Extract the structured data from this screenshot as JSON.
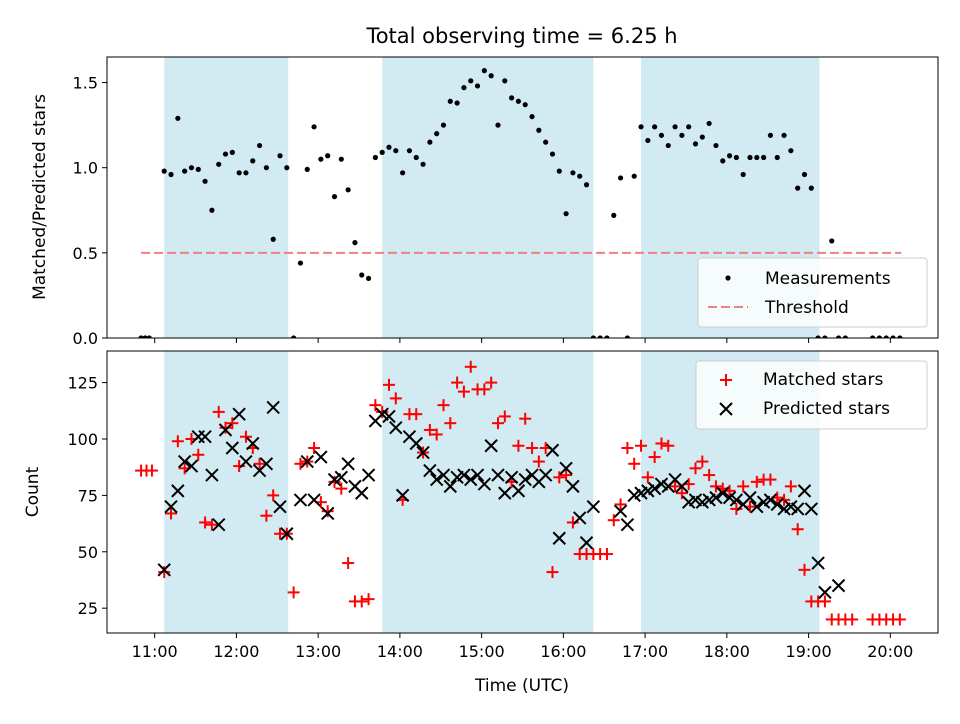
{
  "chart_data": [
    {
      "type": "scatter",
      "title": "Total observing time = 6.25 h",
      "ylabel": "Matched/Predicted stars",
      "xlim": [
        "10:25",
        "20:35"
      ],
      "ylim": [
        0,
        1.65
      ],
      "x_ticks": [
        "11:00",
        "12:00",
        "13:00",
        "14:00",
        "15:00",
        "16:00",
        "17:00",
        "18:00",
        "19:00",
        "20:00"
      ],
      "y_ticks": [
        "0.0",
        "0.5",
        "1.0",
        "1.5"
      ],
      "shaded_intervals": [
        [
          "11:07",
          "12:38"
        ],
        [
          "13:47",
          "16:22"
        ],
        [
          "16:57",
          "19:08"
        ]
      ],
      "shade_color": "#add8e6",
      "legend_position": "lower-right",
      "threshold": {
        "name": "Threshold",
        "y": 0.5,
        "x_range": [
          "10:50",
          "20:08"
        ],
        "color": "#f08080",
        "style": "dashed"
      },
      "series": [
        {
          "name": "Measurements",
          "marker": "dot",
          "color": "#000000",
          "x": [
            "10:50",
            "10:53",
            "10:56",
            "11:07",
            "11:12",
            "11:17",
            "11:22",
            "11:27",
            "11:32",
            "11:37",
            "11:42",
            "11:47",
            "11:52",
            "11:57",
            "12:02",
            "12:07",
            "12:12",
            "12:17",
            "12:22",
            "12:27",
            "12:32",
            "12:37",
            "12:42",
            "12:47",
            "12:52",
            "12:57",
            "13:02",
            "13:07",
            "13:12",
            "13:17",
            "13:22",
            "13:27",
            "13:32",
            "13:37",
            "13:42",
            "13:47",
            "13:52",
            "13:57",
            "14:02",
            "14:07",
            "14:12",
            "14:17",
            "14:22",
            "14:27",
            "14:32",
            "14:37",
            "14:42",
            "14:47",
            "14:52",
            "14:57",
            "15:02",
            "15:07",
            "15:12",
            "15:17",
            "15:22",
            "15:27",
            "15:32",
            "15:37",
            "15:42",
            "15:47",
            "15:52",
            "15:57",
            "16:02",
            "16:07",
            "16:12",
            "16:17",
            "16:22",
            "16:27",
            "16:32",
            "16:37",
            "16:42",
            "16:47",
            "16:52",
            "16:57",
            "17:02",
            "17:07",
            "17:12",
            "17:17",
            "17:22",
            "17:27",
            "17:32",
            "17:37",
            "17:42",
            "17:47",
            "17:52",
            "17:57",
            "18:02",
            "18:07",
            "18:12",
            "18:17",
            "18:22",
            "18:27",
            "18:32",
            "18:37",
            "18:42",
            "18:47",
            "18:52",
            "18:57",
            "19:02",
            "19:07",
            "19:12",
            "19:17",
            "19:22",
            "19:27",
            "19:47",
            "19:52",
            "19:57",
            "20:02",
            "20:07"
          ],
          "y": [
            0,
            0,
            0,
            0.98,
            0.96,
            1.29,
            0.98,
            1.0,
            0.99,
            0.92,
            0.75,
            1.02,
            1.08,
            1.09,
            0.97,
            0.97,
            1.04,
            1.13,
            1.0,
            0.58,
            1.07,
            1.0,
            0,
            0.44,
            0.99,
            1.24,
            1.05,
            1.07,
            0.83,
            1.05,
            0.87,
            0.56,
            0.37,
            0.35,
            1.06,
            1.09,
            1.12,
            1.1,
            0.97,
            1.1,
            1.06,
            1.02,
            1.15,
            1.2,
            1.25,
            1.39,
            1.38,
            1.47,
            1.51,
            1.48,
            1.57,
            1.54,
            1.25,
            1.51,
            1.41,
            1.39,
            1.37,
            1.3,
            1.22,
            1.15,
            1.08,
            0.98,
            0.73,
            0.97,
            0.95,
            0.9,
            0,
            0,
            0,
            0.72,
            0.94,
            0,
            0.95,
            1.24,
            1.16,
            1.24,
            1.19,
            1.13,
            1.24,
            1.19,
            1.24,
            1.14,
            1.18,
            1.26,
            1.13,
            1.04,
            1.07,
            1.06,
            0.96,
            1.06,
            1.06,
            1.06,
            1.19,
            1.06,
            1.19,
            1.1,
            0.88,
            0.96,
            0.88,
            0,
            0,
            0.57,
            0,
            0,
            0,
            0,
            0,
            0,
            0
          ]
        }
      ]
    },
    {
      "type": "scatter",
      "xlabel": "Time (UTC)",
      "ylabel": "Count",
      "xlim": [
        "10:25",
        "20:35"
      ],
      "ylim": [
        14,
        139
      ],
      "x_ticks": [
        "11:00",
        "12:00",
        "13:00",
        "14:00",
        "15:00",
        "16:00",
        "17:00",
        "18:00",
        "19:00",
        "20:00"
      ],
      "y_ticks": [
        "25",
        "50",
        "75",
        "100",
        "125"
      ],
      "shaded_intervals": [
        [
          "11:07",
          "12:38"
        ],
        [
          "13:47",
          "16:22"
        ],
        [
          "16:57",
          "19:08"
        ]
      ],
      "shade_color": "#add8e6",
      "legend_position": "upper-right",
      "series": [
        {
          "name": "Matched stars",
          "marker": "plus",
          "color": "#ff0000",
          "x": [
            "10:50",
            "10:54",
            "10:58",
            "11:07",
            "11:12",
            "11:17",
            "11:22",
            "11:27",
            "11:32",
            "11:37",
            "11:42",
            "11:47",
            "11:52",
            "11:57",
            "12:02",
            "12:07",
            "12:12",
            "12:17",
            "12:22",
            "12:27",
            "12:32",
            "12:37",
            "12:42",
            "12:47",
            "12:52",
            "12:57",
            "13:02",
            "13:07",
            "13:12",
            "13:17",
            "13:22",
            "13:27",
            "13:32",
            "13:37",
            "13:42",
            "13:47",
            "13:52",
            "13:57",
            "14:02",
            "14:07",
            "14:12",
            "14:17",
            "14:22",
            "14:27",
            "14:32",
            "14:37",
            "14:42",
            "14:47",
            "14:52",
            "14:57",
            "15:02",
            "15:07",
            "15:12",
            "15:17",
            "15:22",
            "15:27",
            "15:32",
            "15:37",
            "15:42",
            "15:47",
            "15:52",
            "15:57",
            "16:02",
            "16:07",
            "16:12",
            "16:17",
            "16:22",
            "16:27",
            "16:32",
            "16:37",
            "16:42",
            "16:47",
            "16:52",
            "16:57",
            "17:02",
            "17:07",
            "17:12",
            "17:17",
            "17:22",
            "17:27",
            "17:32",
            "17:37",
            "17:42",
            "17:47",
            "17:52",
            "17:57",
            "18:02",
            "18:07",
            "18:12",
            "18:17",
            "18:22",
            "18:27",
            "18:32",
            "18:37",
            "18:42",
            "18:47",
            "18:52",
            "18:57",
            "19:02",
            "19:07",
            "19:12",
            "19:17",
            "19:22",
            "19:27",
            "19:32",
            "19:47",
            "19:52",
            "19:57",
            "20:02",
            "20:07"
          ],
          "y": [
            86,
            86,
            86,
            41,
            67,
            99,
            87,
            100,
            93,
            63,
            62,
            112,
            105,
            107,
            88,
            101,
            96,
            89,
            66,
            75,
            58,
            58,
            32,
            89,
            90,
            96,
            72,
            68,
            81,
            78,
            45,
            28,
            28,
            29,
            115,
            112,
            124,
            118,
            73,
            111,
            111,
            94,
            104,
            102,
            115,
            107,
            125,
            121,
            132,
            122,
            122,
            125,
            107,
            110,
            81,
            97,
            109,
            96,
            90,
            96,
            41,
            83,
            84,
            63,
            49,
            49,
            49,
            49,
            49,
            64,
            71,
            96,
            89,
            97,
            83,
            92,
            98,
            97,
            79,
            76,
            80,
            87,
            90,
            84,
            79,
            78,
            77,
            69,
            79,
            70,
            81,
            82,
            82,
            74,
            73,
            79,
            60,
            42,
            28,
            28,
            28,
            20,
            20,
            20,
            20,
            20,
            20,
            20,
            20,
            20
          ],
          "trimmed_note": ""
        },
        {
          "name": "Predicted stars",
          "marker": "x",
          "color": "#000000",
          "x": [
            "11:07",
            "11:12",
            "11:17",
            "11:22",
            "11:27",
            "11:32",
            "11:37",
            "11:42",
            "11:47",
            "11:52",
            "11:57",
            "12:02",
            "12:07",
            "12:12",
            "12:17",
            "12:22",
            "12:27",
            "12:32",
            "12:37",
            "12:47",
            "12:52",
            "12:57",
            "13:02",
            "13:07",
            "13:12",
            "13:17",
            "13:22",
            "13:27",
            "13:32",
            "13:37",
            "13:42",
            "13:47",
            "13:52",
            "13:57",
            "14:02",
            "14:07",
            "14:12",
            "14:17",
            "14:22",
            "14:27",
            "14:32",
            "14:37",
            "14:42",
            "14:47",
            "14:52",
            "14:57",
            "15:02",
            "15:07",
            "15:12",
            "15:17",
            "15:22",
            "15:27",
            "15:32",
            "15:37",
            "15:42",
            "15:47",
            "15:52",
            "15:57",
            "16:02",
            "16:07",
            "16:12",
            "16:17",
            "16:22",
            "16:42",
            "16:47",
            "16:52",
            "16:57",
            "17:02",
            "17:07",
            "17:12",
            "17:17",
            "17:22",
            "17:27",
            "17:32",
            "17:37",
            "17:42",
            "17:47",
            "17:52",
            "17:57",
            "18:02",
            "18:07",
            "18:12",
            "18:17",
            "18:22",
            "18:27",
            "18:32",
            "18:37",
            "18:42",
            "18:47",
            "18:52",
            "18:57",
            "19:02",
            "19:07",
            "19:12",
            "19:22"
          ],
          "y": [
            42,
            70,
            77,
            90,
            88,
            101,
            101,
            84,
            62,
            104,
            96,
            111,
            90,
            98,
            86,
            89,
            114,
            70,
            58,
            73,
            90,
            73,
            92,
            67,
            82,
            83,
            89,
            79,
            76,
            84,
            108,
            111,
            110,
            105,
            75,
            101,
            98,
            94,
            86,
            82,
            84,
            79,
            83,
            84,
            82,
            84,
            80,
            97,
            84,
            76,
            83,
            77,
            82,
            84,
            81,
            84,
            95,
            56,
            87,
            79,
            65,
            54,
            70,
            68,
            62,
            75,
            76,
            77,
            78,
            80,
            79,
            82,
            79,
            72,
            73,
            72,
            73,
            74,
            76,
            74,
            73,
            71,
            74,
            70,
            72,
            73,
            71,
            69,
            70,
            69,
            77,
            69,
            45,
            32,
            35
          ]
        }
      ]
    }
  ]
}
